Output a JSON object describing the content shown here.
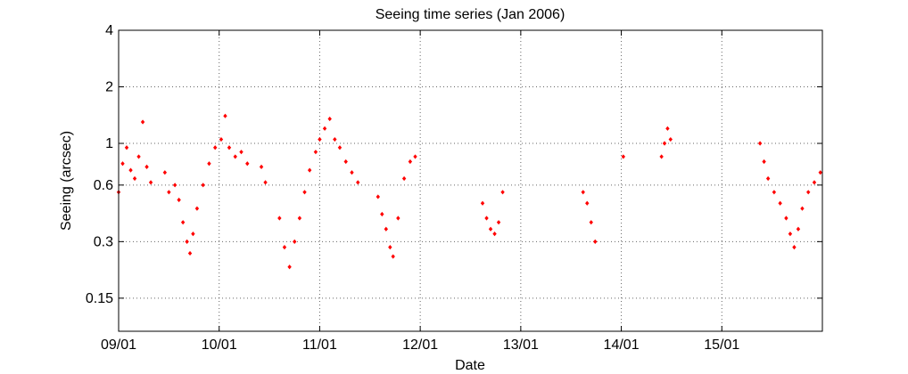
{
  "chart_data": {
    "type": "scatter",
    "title": "Seeing time series (Jan 2006)",
    "xlabel": "Date",
    "ylabel": "Seeing (arcsec)",
    "x_unit": "day of January 2006",
    "xlim": [
      9,
      16
    ],
    "ylim": [
      0.1,
      4
    ],
    "y_scale": "log",
    "x_ticks": [
      9,
      10,
      11,
      12,
      13,
      14,
      15
    ],
    "x_tick_labels": [
      "09/01",
      "10/01",
      "11/01",
      "12/01",
      "13/01",
      "14/01",
      "15/01"
    ],
    "y_ticks": [
      0.15,
      0.3,
      0.6,
      1,
      2,
      4
    ],
    "y_tick_labels": [
      "0.15",
      "0.3",
      "0.6",
      "1",
      "2",
      "4"
    ],
    "grid": true,
    "marker_color": "#ff0000",
    "series": [
      {
        "points": [
          [
            9.0,
            0.55
          ],
          [
            9.04,
            0.78
          ],
          [
            9.08,
            0.95
          ],
          [
            9.12,
            0.72
          ],
          [
            9.16,
            0.65
          ],
          [
            9.2,
            0.85
          ],
          [
            9.24,
            1.3
          ],
          [
            9.28,
            0.75
          ],
          [
            9.32,
            0.62
          ],
          [
            9.46,
            0.7
          ],
          [
            9.5,
            0.55
          ],
          [
            9.56,
            0.6
          ],
          [
            9.6,
            0.5
          ],
          [
            9.64,
            0.38
          ],
          [
            9.68,
            0.3
          ],
          [
            9.71,
            0.26
          ],
          [
            9.74,
            0.33
          ],
          [
            9.78,
            0.45
          ],
          [
            9.84,
            0.6
          ],
          [
            9.9,
            0.78
          ],
          [
            9.96,
            0.95
          ],
          [
            10.02,
            1.05
          ],
          [
            10.06,
            1.4
          ],
          [
            10.1,
            0.95
          ],
          [
            10.16,
            0.85
          ],
          [
            10.22,
            0.9
          ],
          [
            10.28,
            0.78
          ],
          [
            10.42,
            0.75
          ],
          [
            10.46,
            0.62
          ],
          [
            10.6,
            0.4
          ],
          [
            10.65,
            0.28
          ],
          [
            10.7,
            0.22
          ],
          [
            10.75,
            0.3
          ],
          [
            10.8,
            0.4
          ],
          [
            10.85,
            0.55
          ],
          [
            10.9,
            0.72
          ],
          [
            10.96,
            0.9
          ],
          [
            11.0,
            1.05
          ],
          [
            11.05,
            1.2
          ],
          [
            11.1,
            1.35
          ],
          [
            11.15,
            1.05
          ],
          [
            11.2,
            0.95
          ],
          [
            11.26,
            0.8
          ],
          [
            11.32,
            0.7
          ],
          [
            11.38,
            0.62
          ],
          [
            11.58,
            0.52
          ],
          [
            11.62,
            0.42
          ],
          [
            11.66,
            0.35
          ],
          [
            11.7,
            0.28
          ],
          [
            11.73,
            0.25
          ],
          [
            11.78,
            0.4
          ],
          [
            11.84,
            0.65
          ],
          [
            11.9,
            0.8
          ],
          [
            11.95,
            0.85
          ],
          [
            12.62,
            0.48
          ],
          [
            12.66,
            0.4
          ],
          [
            12.7,
            0.35
          ],
          [
            12.74,
            0.33
          ],
          [
            12.78,
            0.38
          ],
          [
            12.82,
            0.55
          ],
          [
            13.62,
            0.55
          ],
          [
            13.66,
            0.48
          ],
          [
            13.7,
            0.38
          ],
          [
            13.74,
            0.3
          ],
          [
            14.02,
            0.85
          ],
          [
            14.4,
            0.85
          ],
          [
            14.43,
            1.0
          ],
          [
            14.46,
            1.2
          ],
          [
            14.49,
            1.05
          ],
          [
            15.38,
            1.0
          ],
          [
            15.42,
            0.8
          ],
          [
            15.46,
            0.65
          ],
          [
            15.52,
            0.55
          ],
          [
            15.58,
            0.48
          ],
          [
            15.64,
            0.4
          ],
          [
            15.68,
            0.33
          ],
          [
            15.72,
            0.28
          ],
          [
            15.76,
            0.35
          ],
          [
            15.8,
            0.45
          ],
          [
            15.86,
            0.55
          ],
          [
            15.92,
            0.62
          ],
          [
            15.98,
            0.7
          ]
        ]
      }
    ]
  }
}
